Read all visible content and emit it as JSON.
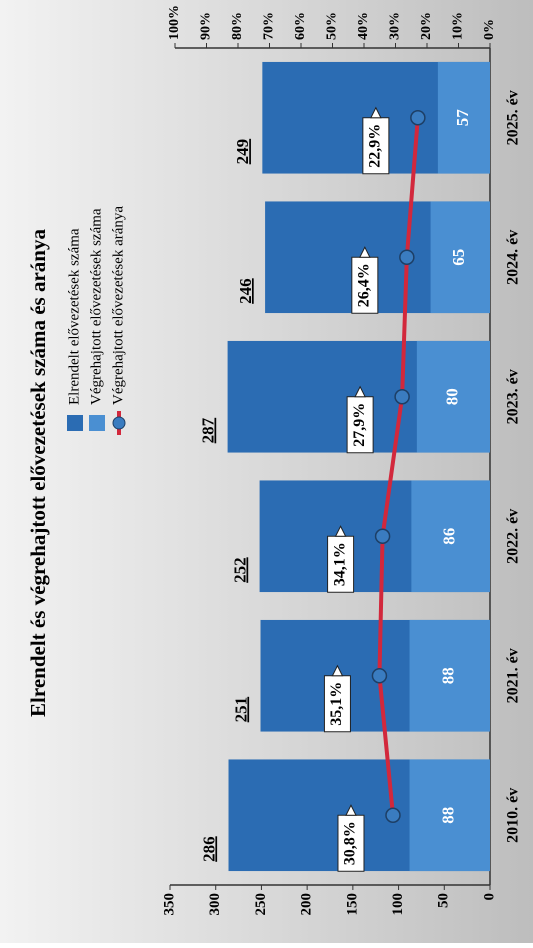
{
  "chart_data": {
    "type": "bar",
    "title": "Elrendelt és végrehajtott elővezetések száma és aránya",
    "categories": [
      "2010. év",
      "2021. év",
      "2022. év",
      "2023. év",
      "2024. év",
      "2025. év"
    ],
    "series": [
      {
        "name": "Elrendelt elővezetések száma",
        "color": "#2b6cb3",
        "values": [
          286,
          251,
          252,
          287,
          246,
          249
        ]
      },
      {
        "name": "Végrehajtott elővezetések száma",
        "color": "#4a8fd2",
        "values": [
          88,
          88,
          86,
          80,
          65,
          57
        ]
      },
      {
        "name": "Végrehajtott elővezetések aránya",
        "color": "#d2283c",
        "type": "line",
        "axis": "y2",
        "values": [
          30.8,
          35.1,
          34.1,
          27.9,
          26.4,
          22.9
        ],
        "value_labels": [
          "30,8%",
          "35,1%",
          "34,1%",
          "27,9%",
          "26,4%",
          "22,9%"
        ]
      }
    ],
    "ylim": [
      0,
      350
    ],
    "yticks": [
      0,
      50,
      100,
      150,
      200,
      250,
      300,
      350
    ],
    "y2lim": [
      0,
      100
    ],
    "y2ticks": [
      {
        "value": 0,
        "label": "0%"
      },
      {
        "value": 10,
        "label": "10%"
      },
      {
        "value": 20,
        "label": "20%"
      },
      {
        "value": 30,
        "label": "30%"
      },
      {
        "value": 40,
        "label": "40%"
      },
      {
        "value": 50,
        "label": "50%"
      },
      {
        "value": 60,
        "label": "60%"
      },
      {
        "value": 70,
        "label": "70%"
      },
      {
        "value": 80,
        "label": "80%"
      },
      {
        "value": 90,
        "label": "90%"
      },
      {
        "value": 100,
        "label": "100%"
      }
    ]
  }
}
